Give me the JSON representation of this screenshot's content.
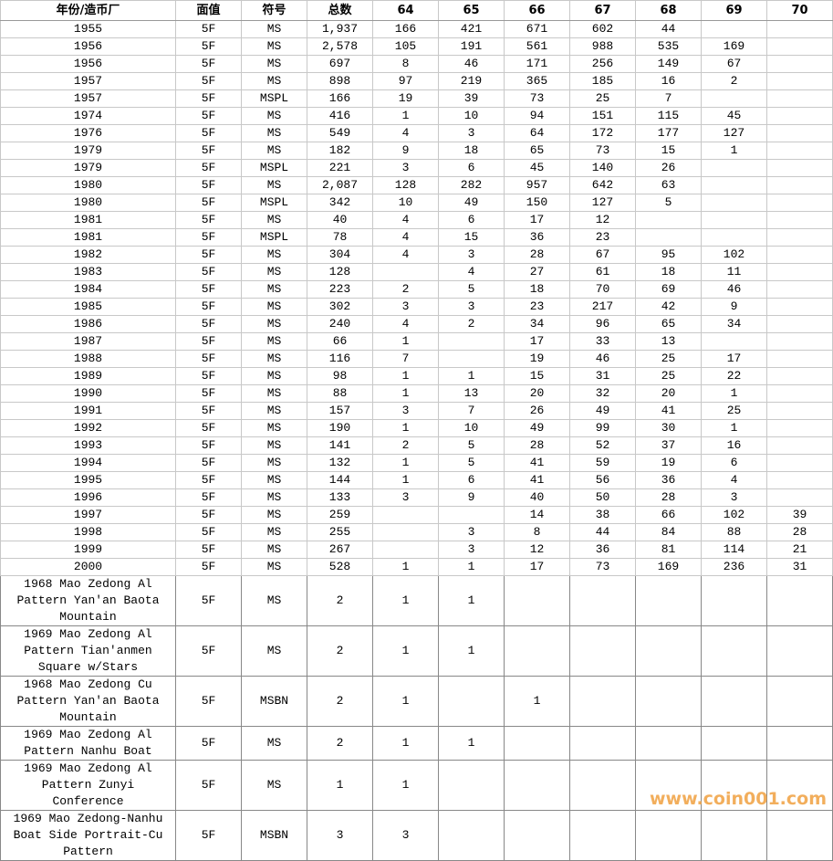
{
  "table": {
    "header": [
      "年份/造币厂",
      "面值",
      "符号",
      "总数",
      "64",
      "65",
      "66",
      "67",
      "68",
      "69",
      "70"
    ],
    "rows": [
      [
        "1955",
        "5F",
        "MS",
        "1,937",
        "166",
        "421",
        "671",
        "602",
        "44",
        null,
        null
      ],
      [
        "1956",
        "5F",
        "MS",
        "2,578",
        "105",
        "191",
        "561",
        "988",
        "535",
        "169",
        null
      ],
      [
        "1956",
        "5F",
        "MS",
        "697",
        "8",
        "46",
        "171",
        "256",
        "149",
        "67",
        null
      ],
      [
        "1957",
        "5F",
        "MS",
        "898",
        "97",
        "219",
        "365",
        "185",
        "16",
        "2",
        null
      ],
      [
        "1957",
        "5F",
        "MSPL",
        "166",
        "19",
        "39",
        "73",
        "25",
        "7",
        null,
        null
      ],
      [
        "1974",
        "5F",
        "MS",
        "416",
        "1",
        "10",
        "94",
        "151",
        "115",
        "45",
        null
      ],
      [
        "1976",
        "5F",
        "MS",
        "549",
        "4",
        "3",
        "64",
        "172",
        "177",
        "127",
        null
      ],
      [
        "1979",
        "5F",
        "MS",
        "182",
        "9",
        "18",
        "65",
        "73",
        "15",
        "1",
        null
      ],
      [
        "1979",
        "5F",
        "MSPL",
        "221",
        "3",
        "6",
        "45",
        "140",
        "26",
        null,
        null
      ],
      [
        "1980",
        "5F",
        "MS",
        "2,087",
        "128",
        "282",
        "957",
        "642",
        "63",
        null,
        null
      ],
      [
        "1980",
        "5F",
        "MSPL",
        "342",
        "10",
        "49",
        "150",
        "127",
        "5",
        null,
        null
      ],
      [
        "1981",
        "5F",
        "MS",
        "40",
        "4",
        "6",
        "17",
        "12",
        null,
        null,
        null
      ],
      [
        "1981",
        "5F",
        "MSPL",
        "78",
        "4",
        "15",
        "36",
        "23",
        null,
        null,
        null
      ],
      [
        "1982",
        "5F",
        "MS",
        "304",
        "4",
        "3",
        "28",
        "67",
        "95",
        "102",
        null
      ],
      [
        "1983",
        "5F",
        "MS",
        "128",
        null,
        "4",
        "27",
        "61",
        "18",
        "11",
        null
      ],
      [
        "1984",
        "5F",
        "MS",
        "223",
        "2",
        "5",
        "18",
        "70",
        "69",
        "46",
        null
      ],
      [
        "1985",
        "5F",
        "MS",
        "302",
        "3",
        "3",
        "23",
        "217",
        "42",
        "9",
        null
      ],
      [
        "1986",
        "5F",
        "MS",
        "240",
        "4",
        "2",
        "34",
        "96",
        "65",
        "34",
        null
      ],
      [
        "1987",
        "5F",
        "MS",
        "66",
        "1",
        null,
        "17",
        "33",
        "13",
        null,
        null
      ],
      [
        "1988",
        "5F",
        "MS",
        "116",
        "7",
        null,
        "19",
        "46",
        "25",
        "17",
        null
      ],
      [
        "1989",
        "5F",
        "MS",
        "98",
        "1",
        "1",
        "15",
        "31",
        "25",
        "22",
        null
      ],
      [
        "1990",
        "5F",
        "MS",
        "88",
        "1",
        "13",
        "20",
        "32",
        "20",
        "1",
        null
      ],
      [
        "1991",
        "5F",
        "MS",
        "157",
        "3",
        "7",
        "26",
        "49",
        "41",
        "25",
        null
      ],
      [
        "1992",
        "5F",
        "MS",
        "190",
        "1",
        "10",
        "49",
        "99",
        "30",
        "1",
        null
      ],
      [
        "1993",
        "5F",
        "MS",
        "141",
        "2",
        "5",
        "28",
        "52",
        "37",
        "16",
        null
      ],
      [
        "1994",
        "5F",
        "MS",
        "132",
        "1",
        "5",
        "41",
        "59",
        "19",
        "6",
        null
      ],
      [
        "1995",
        "5F",
        "MS",
        "144",
        "1",
        "6",
        "41",
        "56",
        "36",
        "4",
        null
      ],
      [
        "1996",
        "5F",
        "MS",
        "133",
        "3",
        "9",
        "40",
        "50",
        "28",
        "3",
        null
      ],
      [
        "1997",
        "5F",
        "MS",
        "259",
        null,
        null,
        "14",
        "38",
        "66",
        "102",
        "39"
      ],
      [
        "1998",
        "5F",
        "MS",
        "255",
        null,
        "3",
        "8",
        "44",
        "84",
        "88",
        "28"
      ],
      [
        "1999",
        "5F",
        "MS",
        "267",
        null,
        "3",
        "12",
        "36",
        "81",
        "114",
        "21"
      ],
      [
        "2000",
        "5F",
        "MS",
        "528",
        "1",
        "1",
        "17",
        "73",
        "169",
        "236",
        "31"
      ],
      [
        "1968 Mao Zedong Al Pattern Yan'an Baota Mountain",
        "5F",
        "MS",
        "2",
        "1",
        "1",
        null,
        null,
        null,
        null,
        null
      ],
      [
        "1969 Mao Zedong Al Pattern Tian'anmen Square w/Stars",
        "5F",
        "MS",
        "2",
        "1",
        "1",
        null,
        null,
        null,
        null,
        null
      ],
      [
        "1968 Mao Zedong Cu Pattern Yan'an Baota Mountain",
        "5F",
        "MSBN",
        "2",
        "1",
        null,
        "1",
        null,
        null,
        null,
        null
      ],
      [
        "1969 Mao Zedong Al Pattern Nanhu Boat",
        "5F",
        "MS",
        "2",
        "1",
        "1",
        null,
        null,
        null,
        null,
        null
      ],
      [
        "1969 Mao Zedong Al Pattern Zunyi Conference",
        "5F",
        "MS",
        "1",
        "1",
        null,
        null,
        null,
        null,
        null,
        null
      ],
      [
        "1969 Mao Zedong-Nanhu Boat Side Portrait-Cu Pattern",
        "5F",
        "MSBN",
        "3",
        "3",
        null,
        null,
        null,
        null,
        null,
        null
      ]
    ]
  },
  "watermark": "www.coin001.com"
}
